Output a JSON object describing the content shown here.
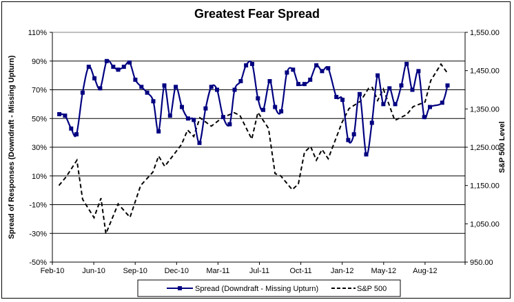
{
  "chart_data": {
    "type": "line",
    "title": "Greatest Fear Spread",
    "ylabel": "Spread of Responses (Downdraft - Missing Upturn)",
    "y2label": "S&P 500 Level",
    "ylim": [
      -50,
      110
    ],
    "y2lim": [
      950,
      1550
    ],
    "xlim": [
      "2010-02-01",
      "2012-11-07"
    ],
    "grid": true,
    "legend": "bottom",
    "x_tick_labels": [
      "Feb-10",
      "Jun-10",
      "Sep-10",
      "Dec-10",
      "Mar-11",
      "Jul-11",
      "Oct-11",
      "Jan-12",
      "May-12",
      "Aug-12"
    ],
    "y_tick_labels": [
      "110%",
      "90%",
      "70%",
      "50%",
      "30%",
      "10%",
      "-10%",
      "-30%",
      "-50%"
    ],
    "y2_tick_labels": [
      "1,550.00",
      "1,450.00",
      "1,350.00",
      "1,250.00",
      "1,150.00",
      "1,050.00",
      "950.00"
    ],
    "series": [
      {
        "name": "Spread (Downdraft - Missing Upturn)",
        "axis": "left",
        "color": "#000080",
        "style": "solid-markers",
        "x": [
          "2010-02-18",
          "2010-03-04",
          "2010-03-19",
          "2010-04-01",
          "2010-04-16",
          "2010-05-01",
          "2010-05-15",
          "2010-05-29",
          "2010-06-14",
          "2010-06-30",
          "2010-07-12",
          "2010-07-26",
          "2010-08-09",
          "2010-08-23",
          "2010-09-07",
          "2010-09-21",
          "2010-10-06",
          "2010-10-19",
          "2010-11-02",
          "2010-11-16",
          "2010-11-30",
          "2010-12-15",
          "2010-12-30",
          "2011-01-13",
          "2011-01-27",
          "2011-02-11",
          "2011-02-25",
          "2011-03-11",
          "2011-03-26",
          "2011-04-11",
          "2011-04-23",
          "2011-05-08",
          "2011-05-21",
          "2011-06-05",
          "2011-06-19",
          "2011-07-02",
          "2011-07-18",
          "2011-07-31",
          "2011-08-15",
          "2011-08-29",
          "2011-09-13",
          "2011-09-26",
          "2011-10-11",
          "2011-10-25",
          "2011-11-09",
          "2011-11-23",
          "2011-12-08",
          "2011-12-28",
          "2012-01-12",
          "2012-01-26",
          "2012-02-09",
          "2012-02-23",
          "2012-03-10",
          "2012-03-24",
          "2012-04-07",
          "2012-04-21",
          "2012-05-06",
          "2012-05-20",
          "2012-06-04",
          "2012-06-17",
          "2012-07-01",
          "2012-07-16",
          "2012-07-30",
          "2012-08-13",
          "2012-09-12",
          "2012-09-25"
        ],
        "values": [
          53,
          52,
          43,
          39,
          68,
          86,
          78,
          71,
          90,
          86,
          84,
          86,
          89,
          77,
          72,
          68,
          62,
          41,
          73,
          52,
          72,
          58,
          50,
          49,
          33,
          57,
          72,
          70,
          51,
          46,
          70,
          76,
          87,
          88,
          64,
          56,
          76,
          58,
          55,
          82,
          84,
          74,
          74,
          77,
          87,
          83,
          85,
          65,
          63,
          35,
          39,
          67,
          25,
          47,
          80,
          60,
          71,
          60,
          73,
          88,
          70,
          83,
          51,
          58,
          61,
          73
        ]
      },
      {
        "name": "S&P 500",
        "axis": "right",
        "color": "#000000",
        "style": "dashed",
        "x": [
          "2010-02-17",
          "2010-03-07",
          "2010-04-02",
          "2010-04-16",
          "2010-05-14",
          "2010-05-31",
          "2010-06-12",
          "2010-07-12",
          "2010-08-10",
          "2010-09-05",
          "2010-10-05",
          "2010-10-19",
          "2010-11-03",
          "2010-12-14",
          "2010-12-29",
          "2011-01-13",
          "2011-01-28",
          "2011-02-25",
          "2011-03-25",
          "2011-04-22",
          "2011-05-06",
          "2011-06-04",
          "2011-06-19",
          "2011-07-15",
          "2011-07-31",
          "2011-08-14",
          "2011-09-11",
          "2011-09-26",
          "2011-10-11",
          "2011-10-26",
          "2011-11-09",
          "2011-11-23",
          "2011-12-08",
          "2012-01-11",
          "2012-01-28",
          "2012-02-25",
          "2012-03-16",
          "2012-03-25",
          "2012-04-07",
          "2012-04-21",
          "2012-05-19",
          "2012-06-17",
          "2012-07-03",
          "2012-08-01",
          "2012-08-15",
          "2012-09-09",
          "2012-09-26"
        ],
        "values": [
          1150,
          1173,
          1216,
          1114,
          1066,
          1117,
          1024,
          1102,
          1067,
          1150,
          1185,
          1227,
          1200,
          1257,
          1295,
          1278,
          1327,
          1305,
          1328,
          1340,
          1333,
          1271,
          1341,
          1299,
          1181,
          1175,
          1139,
          1154,
          1237,
          1252,
          1216,
          1244,
          1220,
          1315,
          1351,
          1370,
          1404,
          1406,
          1372,
          1402,
          1320,
          1335,
          1356,
          1368,
          1424,
          1467,
          1442
        ]
      }
    ]
  }
}
